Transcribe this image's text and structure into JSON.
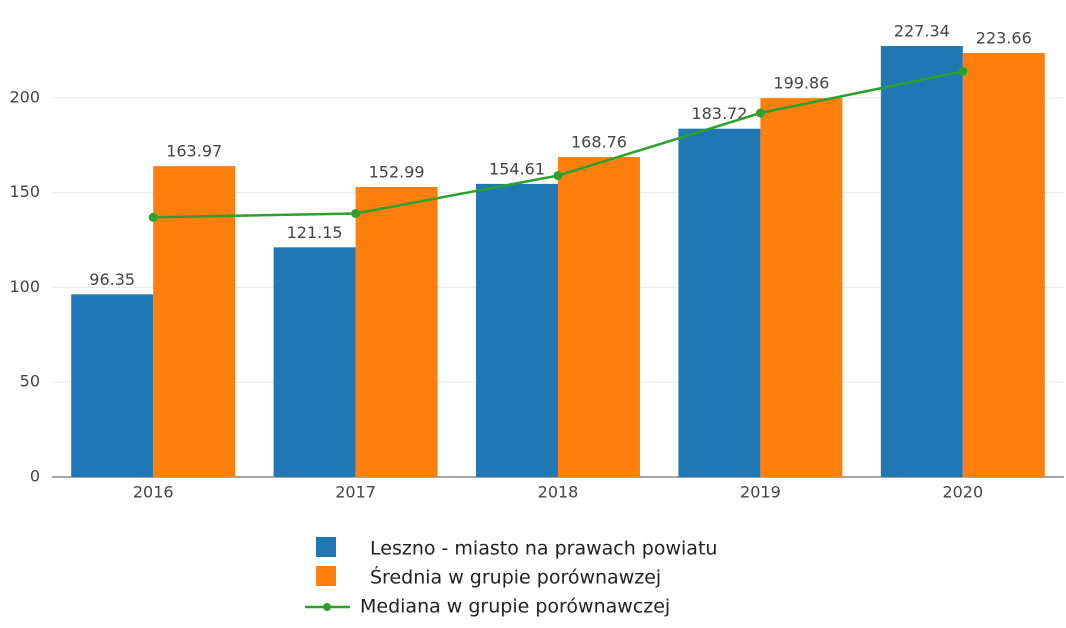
{
  "chart_data": {
    "type": "bar",
    "categories": [
      "2016",
      "2017",
      "2018",
      "2019",
      "2020"
    ],
    "series": [
      {
        "name": "Leszno - miasto na prawach powiatu",
        "color": "#1f77b4",
        "values": [
          96.35,
          121.15,
          154.61,
          183.72,
          227.34
        ]
      },
      {
        "name": "Średnia w grupie porównawzej",
        "color": "#ff7f0e",
        "values": [
          163.97,
          152.99,
          168.76,
          199.86,
          223.66
        ]
      },
      {
        "name": "Mediana w grupie porównawczej",
        "color": "#2ca02c",
        "type": "line",
        "values": [
          137,
          139,
          159,
          192,
          214
        ]
      }
    ],
    "ylim": [
      0,
      240
    ],
    "yticks": [
      0,
      50,
      100,
      150,
      200
    ],
    "grid": true
  }
}
